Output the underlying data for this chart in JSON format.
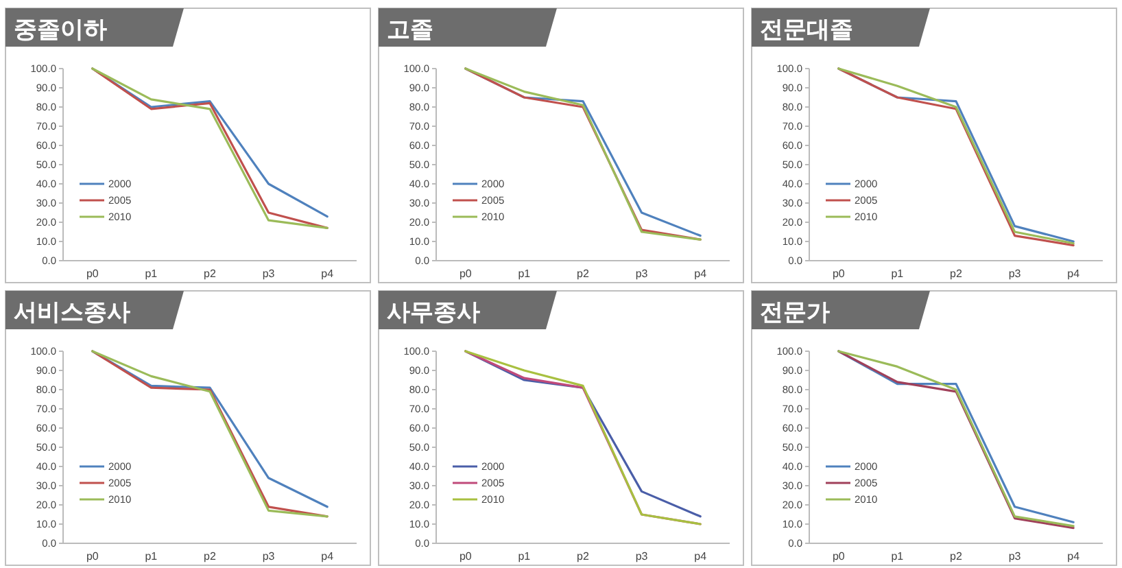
{
  "chart_data": [
    {
      "type": "line",
      "title": "중졸이하",
      "categories": [
        "p0",
        "p1",
        "p2",
        "p3",
        "p4"
      ],
      "ylim": [
        0,
        100
      ],
      "yticks": [
        {
          "value": 0,
          "label": "0.0"
        },
        {
          "value": 10,
          "label": "10.0"
        },
        {
          "value": 20,
          "label": "20.0"
        },
        {
          "value": 30,
          "label": "30.0"
        },
        {
          "value": 40,
          "label": "40.0"
        },
        {
          "value": 50,
          "label": "50.0"
        },
        {
          "value": 60,
          "label": "60.0"
        },
        {
          "value": 70,
          "label": "70.0"
        },
        {
          "value": 80,
          "label": "80.0"
        },
        {
          "value": 90,
          "label": "90.0"
        },
        {
          "value": 100,
          "label": "100.0"
        }
      ],
      "legend": "left",
      "series": [
        {
          "name": "2000",
          "color": "#4f81bd",
          "values": [
            100,
            80,
            83,
            40,
            23
          ]
        },
        {
          "name": "2005",
          "color": "#c0504d",
          "values": [
            100,
            79,
            82,
            25,
            17
          ]
        },
        {
          "name": "2010",
          "color": "#9bbb59",
          "values": [
            100,
            84,
            79,
            21,
            17
          ]
        }
      ]
    },
    {
      "type": "line",
      "title": "고졸",
      "categories": [
        "p0",
        "p1",
        "p2",
        "p3",
        "p4"
      ],
      "ylim": [
        0,
        100
      ],
      "yticks": [
        {
          "value": 0,
          "label": "0.0"
        },
        {
          "value": 10,
          "label": "10.0"
        },
        {
          "value": 20,
          "label": "20.0"
        },
        {
          "value": 30,
          "label": "30.0"
        },
        {
          "value": 40,
          "label": "40.0"
        },
        {
          "value": 50,
          "label": "50.0"
        },
        {
          "value": 60,
          "label": "60.0"
        },
        {
          "value": 70,
          "label": "70.0"
        },
        {
          "value": 80,
          "label": "80.0"
        },
        {
          "value": 90,
          "label": "90.0"
        },
        {
          "value": 100,
          "label": "100.0"
        }
      ],
      "legend": "left",
      "series": [
        {
          "name": "2000",
          "color": "#4f81bd",
          "values": [
            100,
            85,
            83,
            25,
            13
          ]
        },
        {
          "name": "2005",
          "color": "#c0504d",
          "values": [
            100,
            85,
            80,
            16,
            11
          ]
        },
        {
          "name": "2010",
          "color": "#9bbb59",
          "values": [
            100,
            88,
            81,
            15,
            11
          ]
        }
      ]
    },
    {
      "type": "line",
      "title": "전문대졸",
      "categories": [
        "p0",
        "p1",
        "p2",
        "p3",
        "p4"
      ],
      "ylim": [
        0,
        100
      ],
      "yticks": [
        {
          "value": 0,
          "label": "0.0"
        },
        {
          "value": 10,
          "label": "10.0"
        },
        {
          "value": 20,
          "label": "20.0"
        },
        {
          "value": 30,
          "label": "30.0"
        },
        {
          "value": 40,
          "label": "40.0"
        },
        {
          "value": 50,
          "label": "50.0"
        },
        {
          "value": 60,
          "label": "60.0"
        },
        {
          "value": 70,
          "label": "70.0"
        },
        {
          "value": 80,
          "label": "80.0"
        },
        {
          "value": 90,
          "label": "90.0"
        },
        {
          "value": 100,
          "label": "100.0"
        }
      ],
      "legend": "left",
      "series": [
        {
          "name": "2000",
          "color": "#4f81bd",
          "values": [
            100,
            85,
            83,
            18,
            10
          ]
        },
        {
          "name": "2005",
          "color": "#c0504d",
          "values": [
            100,
            85,
            79,
            13,
            8
          ]
        },
        {
          "name": "2010",
          "color": "#9bbb59",
          "values": [
            100,
            91,
            80,
            15,
            9
          ]
        }
      ]
    },
    {
      "type": "line",
      "title": "서비스종사",
      "categories": [
        "p0",
        "p1",
        "p2",
        "p3",
        "p4"
      ],
      "ylim": [
        0,
        100
      ],
      "yticks": [
        {
          "value": 0,
          "label": "0.0"
        },
        {
          "value": 10,
          "label": "10.0"
        },
        {
          "value": 20,
          "label": "20.0"
        },
        {
          "value": 30,
          "label": "30.0"
        },
        {
          "value": 40,
          "label": "40.0"
        },
        {
          "value": 50,
          "label": "50.0"
        },
        {
          "value": 60,
          "label": "60.0"
        },
        {
          "value": 70,
          "label": "70.0"
        },
        {
          "value": 80,
          "label": "80.0"
        },
        {
          "value": 90,
          "label": "90.0"
        },
        {
          "value": 100,
          "label": "100.0"
        }
      ],
      "legend": "left",
      "series": [
        {
          "name": "2000",
          "color": "#4f81bd",
          "values": [
            100,
            82,
            81,
            34,
            19
          ]
        },
        {
          "name": "2005",
          "color": "#c0504d",
          "values": [
            100,
            81,
            80,
            19,
            14
          ]
        },
        {
          "name": "2010",
          "color": "#9bbb59",
          "values": [
            100,
            87,
            79,
            17,
            14
          ]
        }
      ]
    },
    {
      "type": "line",
      "title": "사무종사",
      "categories": [
        "p0",
        "p1",
        "p2",
        "p3",
        "p4"
      ],
      "ylim": [
        0,
        100
      ],
      "yticks": [
        {
          "value": 0,
          "label": "0.0"
        },
        {
          "value": 10,
          "label": "10.0"
        },
        {
          "value": 20,
          "label": "20.0"
        },
        {
          "value": 30,
          "label": "30.0"
        },
        {
          "value": 40,
          "label": "40.0"
        },
        {
          "value": 50,
          "label": "50.0"
        },
        {
          "value": 60,
          "label": "60.0"
        },
        {
          "value": 70,
          "label": "70.0"
        },
        {
          "value": 80,
          "label": "80.0"
        },
        {
          "value": 90,
          "label": "90.0"
        },
        {
          "value": 100,
          "label": "100.0"
        }
      ],
      "legend": "left",
      "series": [
        {
          "name": "2000",
          "color": "#4a5ea8",
          "values": [
            100,
            85,
            81,
            27,
            14
          ]
        },
        {
          "name": "2005",
          "color": "#c04a7a",
          "values": [
            100,
            86,
            81,
            15,
            10
          ]
        },
        {
          "name": "2010",
          "color": "#a8c040",
          "values": [
            100,
            90,
            82,
            15,
            10
          ]
        }
      ]
    },
    {
      "type": "line",
      "title": "전문가",
      "categories": [
        "p0",
        "p1",
        "p2",
        "p3",
        "p4"
      ],
      "ylim": [
        0,
        100
      ],
      "yticks": [
        {
          "value": 0,
          "label": "0.0"
        },
        {
          "value": 10,
          "label": "10.0"
        },
        {
          "value": 20,
          "label": "20.0"
        },
        {
          "value": 30,
          "label": "30.0"
        },
        {
          "value": 40,
          "label": "40.0"
        },
        {
          "value": 50,
          "label": "50.0"
        },
        {
          "value": 60,
          "label": "60.0"
        },
        {
          "value": 70,
          "label": "70.0"
        },
        {
          "value": 80,
          "label": "80.0"
        },
        {
          "value": 90,
          "label": "90.0"
        },
        {
          "value": 100,
          "label": "100.0"
        }
      ],
      "legend": "left",
      "series": [
        {
          "name": "2000",
          "color": "#4f81bd",
          "values": [
            100,
            83,
            83,
            19,
            11
          ]
        },
        {
          "name": "2005",
          "color": "#a0405a",
          "values": [
            100,
            84,
            79,
            13,
            8
          ]
        },
        {
          "name": "2010",
          "color": "#9bbb59",
          "values": [
            100,
            92,
            80,
            14,
            9
          ]
        }
      ]
    }
  ]
}
